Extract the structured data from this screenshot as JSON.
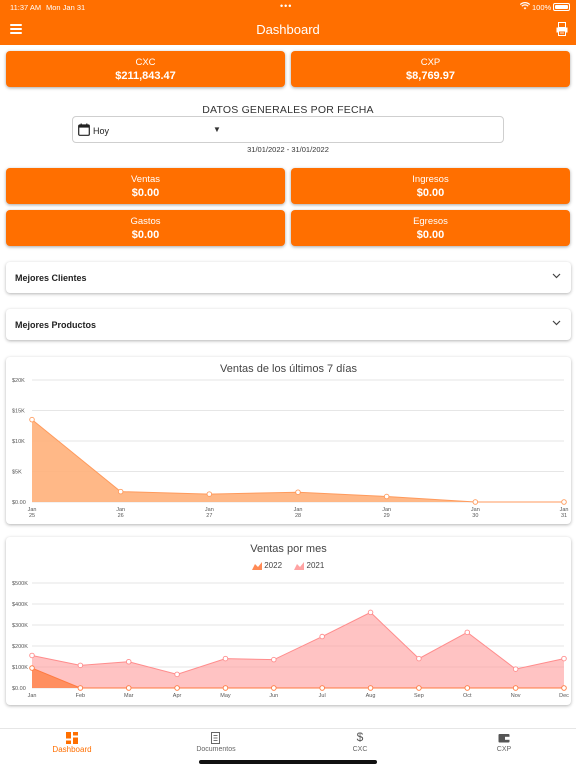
{
  "status_bar": {
    "time": "11:37 AM",
    "date": "Mon Jan 31",
    "battery": "100%"
  },
  "app_bar": {
    "title": "Dashboard"
  },
  "summary": {
    "cxc": {
      "label": "CXC",
      "value": "$211,843.47"
    },
    "cxp": {
      "label": "CXP",
      "value": "$8,769.97"
    }
  },
  "filters": {
    "title": "DATOS GENERALES POR FECHA",
    "period_value": "Hoy",
    "date_range": "31/01/2022 - 31/01/2022"
  },
  "kpis": {
    "ventas": {
      "label": "Ventas",
      "value": "$0.00"
    },
    "ingresos": {
      "label": "Ingresos",
      "value": "$0.00"
    },
    "gastos": {
      "label": "Gastos",
      "value": "$0.00"
    },
    "egresos": {
      "label": "Egresos",
      "value": "$0.00"
    }
  },
  "sections": {
    "mejores_clientes": "Mejores Clientes",
    "mejores_productos": "Mejores Productos"
  },
  "colors": {
    "accent": "#ff6f00",
    "area_7d": "#ffb07a",
    "series_2022": "#ff8a55",
    "series_2021": "#ffa3a3"
  },
  "chart_data": [
    {
      "type": "area",
      "title": "Ventas de los últimos 7 días",
      "categories": [
        "Jan 25",
        "Jan 26",
        "Jan 27",
        "Jan 28",
        "Jan 29",
        "Jan 30",
        "Jan 31"
      ],
      "values": [
        13500,
        1700,
        1300,
        1600,
        900,
        0,
        0
      ],
      "ylim": [
        0,
        20000
      ],
      "y_ticks": [
        "$0.00",
        "$5K",
        "$10K",
        "$15K",
        "$20K"
      ],
      "grid": true
    },
    {
      "type": "area",
      "title": "Ventas por mes",
      "categories": [
        "Jan",
        "Feb",
        "Mar",
        "Apr",
        "May",
        "Jun",
        "Jul",
        "Aug",
        "Sep",
        "Oct",
        "Nov",
        "Dec"
      ],
      "series": [
        {
          "name": "2022",
          "values": [
            95000,
            0,
            0,
            0,
            0,
            0,
            0,
            0,
            0,
            0,
            0,
            0
          ]
        },
        {
          "name": "2021",
          "values": [
            155000,
            108000,
            125000,
            65000,
            140000,
            135000,
            245000,
            360000,
            140000,
            265000,
            90000,
            140000
          ]
        }
      ],
      "ylim": [
        0,
        500000
      ],
      "y_ticks": [
        "$0.00",
        "$100K",
        "$200K",
        "$300K",
        "$400K",
        "$500K"
      ],
      "legend": "top-center",
      "grid": true
    }
  ],
  "tab_bar": [
    {
      "label": "Dashboard",
      "icon": "dashboard-icon",
      "active": true
    },
    {
      "label": "Documentos",
      "icon": "documents-icon",
      "active": false
    },
    {
      "label": "CXC",
      "icon": "dollar-icon",
      "active": false
    },
    {
      "label": "CXP",
      "icon": "wallet-icon",
      "active": false
    }
  ]
}
